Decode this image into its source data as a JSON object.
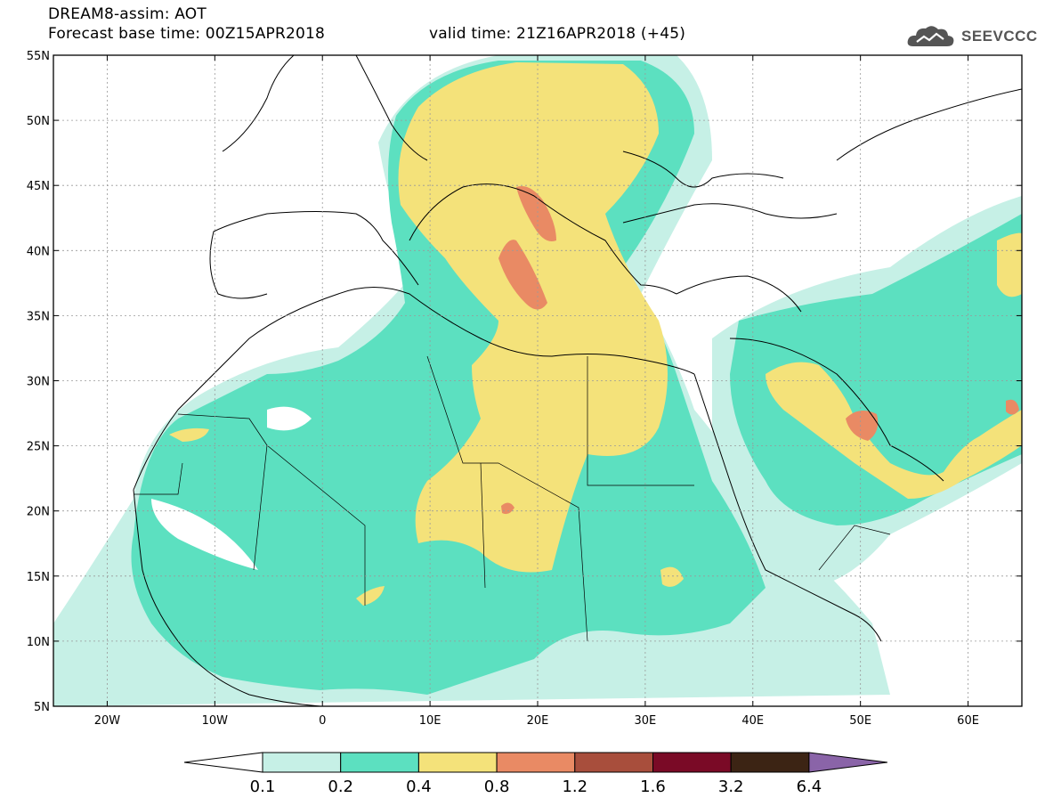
{
  "header": {
    "title": "DREAM8-assim: AOT",
    "base_label": "Forecast base time: 00Z15APR2018",
    "valid_label": "valid time: 21Z16APR2018 (+45)"
  },
  "logo": {
    "text": "SEEVCCC",
    "icon": "cloud-icon"
  },
  "map": {
    "lat_ticks": [
      "55N",
      "50N",
      "45N",
      "40N",
      "35N",
      "30N",
      "25N",
      "20N",
      "15N",
      "10N",
      "5N"
    ],
    "lon_ticks": [
      "20W",
      "10W",
      "0",
      "10E",
      "20E",
      "30E",
      "40E",
      "50E",
      "60E"
    ],
    "lon_range": [
      -25,
      65
    ],
    "lat_range": [
      5,
      55
    ]
  },
  "colorbar": {
    "labels": [
      "0.1",
      "0.2",
      "0.4",
      "0.8",
      "1.2",
      "1.6",
      "3.2",
      "6.4"
    ],
    "colors": [
      "#ffffff",
      "#c6f0e6",
      "#5ce0c0",
      "#f4e27a",
      "#e98a64",
      "#a84e3c",
      "#7a0a26",
      "#3c2414",
      "#8a64a8"
    ]
  }
}
